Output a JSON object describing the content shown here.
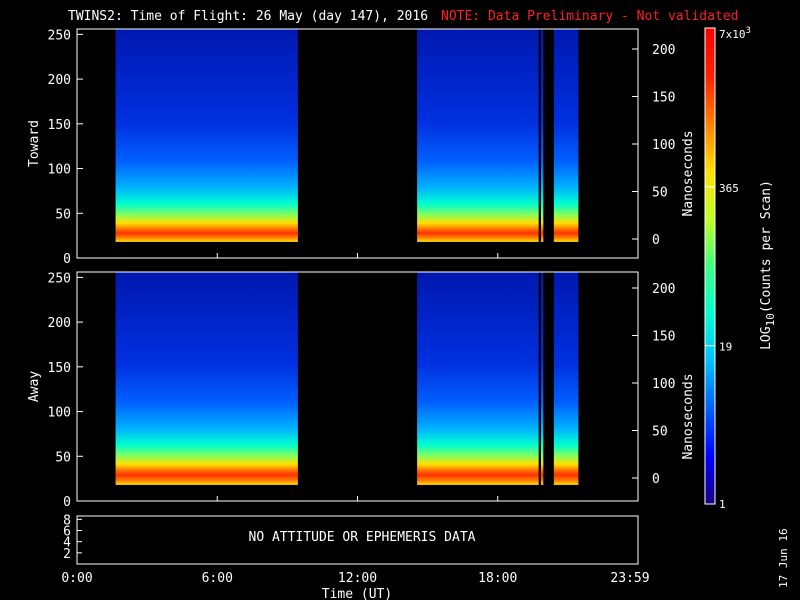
{
  "title": {
    "main": "TWINS2: Time of Flight: 26 May (day 147), 2016",
    "note": "NOTE: Data Preliminary - Not validated"
  },
  "colors": {
    "note": "#ff2020",
    "frame": "#ffffff",
    "background": "#000000"
  },
  "chart_data": [
    {
      "type": "heatmap",
      "panel": "Toward",
      "ylabel": "Toward",
      "ylabel_right": "Nanoseconds",
      "ylim": [
        0,
        256
      ],
      "yticks": [
        "0",
        "50",
        "100",
        "150",
        "200",
        "250"
      ],
      "yticks_right": [
        "0",
        "50",
        "100",
        "150",
        "200"
      ],
      "x_range_hours": [
        0,
        24
      ],
      "data_intervals_hours": [
        [
          1.65,
          9.45
        ],
        [
          14.55,
          19.75
        ],
        [
          19.85,
          19.95
        ],
        [
          20.4,
          21.45
        ]
      ],
      "peak_bin_approx": 32,
      "colorscale": "rainbow (blue-low to red-high), log scale"
    },
    {
      "type": "heatmap",
      "panel": "Away",
      "ylabel": "Away",
      "ylabel_right": "Nanoseconds",
      "ylim": [
        0,
        256
      ],
      "yticks": [
        "0",
        "50",
        "100",
        "150",
        "200",
        "250"
      ],
      "yticks_right": [
        "0",
        "50",
        "100",
        "150",
        "200"
      ],
      "x_range_hours": [
        0,
        24
      ],
      "data_intervals_hours": [
        [
          1.65,
          9.45
        ],
        [
          14.55,
          19.75
        ],
        [
          19.85,
          19.95
        ],
        [
          20.4,
          21.45
        ]
      ],
      "peak_bin_approx": 34,
      "colorscale": "rainbow (blue-low to red-high), log scale"
    }
  ],
  "attitude_panel": {
    "message": "NO ATTITUDE OR EPHEMERIS DATA",
    "yticks": [
      "2",
      "4",
      "6",
      "8"
    ]
  },
  "x_axis": {
    "ticks": [
      "0:00",
      "6:00",
      "12:00",
      "18:00",
      "23:59"
    ],
    "label": "Time (UT)"
  },
  "colorbar": {
    "label": "LOG10(Counts per Scan)",
    "label_parts": {
      "pre": "LOG",
      "sub": "10",
      "post": "(Counts per Scan)"
    },
    "ticks": [
      {
        "text": "1"
      },
      {
        "text": "19"
      },
      {
        "text": "365"
      },
      {
        "text_base": "7x10",
        "text_sup": "3"
      }
    ],
    "stops": [
      "#1a0080",
      "#0000ff",
      "#0060ff",
      "#00c0ff",
      "#00ffd0",
      "#40ff80",
      "#c0ff20",
      "#ffe000",
      "#ff8000",
      "#ff2000",
      "#ff0000"
    ]
  },
  "date_stamp": "17 Jun 16"
}
